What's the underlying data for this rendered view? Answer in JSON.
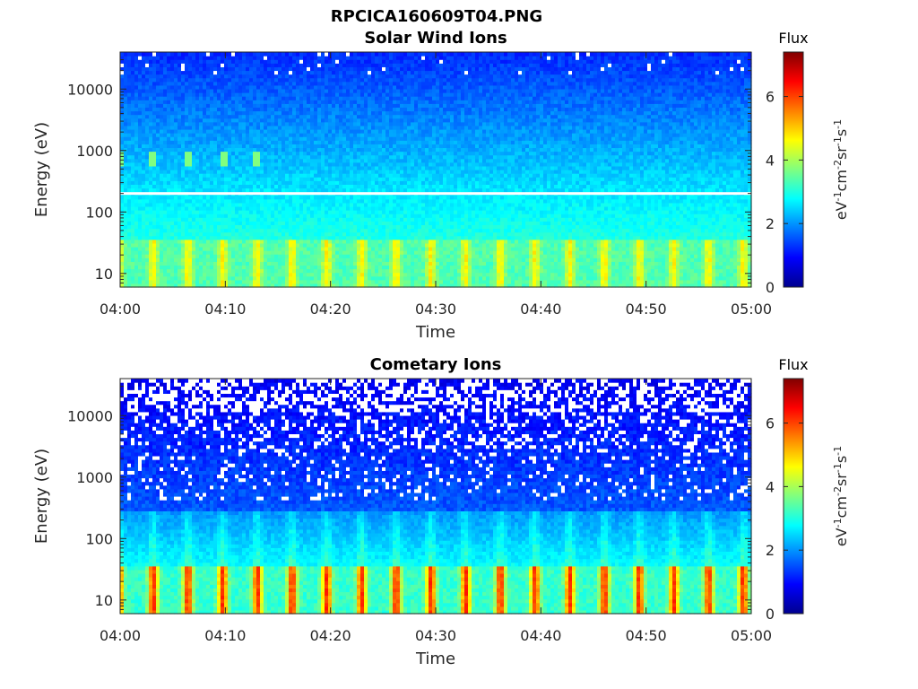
{
  "figure": {
    "title": "RPCICA160609T04.PNG"
  },
  "chart_data": [
    {
      "type": "heatmap",
      "title": "Solar Wind Ions",
      "xlabel": "Time",
      "ylabel": "Energy (eV)",
      "x_ticks": [
        "04:00",
        "04:10",
        "04:20",
        "04:30",
        "04:40",
        "04:50",
        "05:00"
      ],
      "x_range": [
        "04:00",
        "05:00"
      ],
      "y_scale": "log",
      "y_ticks": [
        10,
        100,
        1000,
        10000
      ],
      "y_tick_labels": [
        "10",
        "100",
        "1000",
        "10000"
      ],
      "y_range": [
        6,
        40000
      ],
      "colorbar": {
        "title": "Flux",
        "label": "eV-1cm-2sr-1s-1",
        "ticks": [
          0,
          2,
          4,
          6
        ],
        "tick_labels": [
          "0",
          "2",
          "4",
          "6"
        ],
        "range": [
          0,
          7.4
        ],
        "colormap": "jet"
      },
      "features": {
        "white_line_energy_eV": 200,
        "low_energy_band_eV": [
          6,
          35
        ],
        "low_energy_pulse_period_min": 3.3
      }
    },
    {
      "type": "heatmap",
      "title": "Cometary Ions",
      "xlabel": "Time",
      "ylabel": "Energy (eV)",
      "x_ticks": [
        "04:00",
        "04:10",
        "04:20",
        "04:30",
        "04:40",
        "04:50",
        "05:00"
      ],
      "x_range": [
        "04:00",
        "05:00"
      ],
      "y_scale": "log",
      "y_ticks": [
        10,
        100,
        1000,
        10000
      ],
      "y_tick_labels": [
        "10",
        "100",
        "1000",
        "10000"
      ],
      "y_range": [
        6,
        40000
      ],
      "colorbar": {
        "title": "Flux",
        "label": "eV-1cm-2sr-1s-1",
        "ticks": [
          0,
          2,
          4,
          6
        ],
        "tick_labels": [
          "0",
          "2",
          "4",
          "6"
        ],
        "range": [
          0,
          7.4
        ],
        "colormap": "jet"
      },
      "features": {
        "low_energy_band_eV": [
          6,
          35
        ],
        "low_energy_pulse_period_min": 3.3,
        "peak_flux": 6.5
      }
    }
  ]
}
